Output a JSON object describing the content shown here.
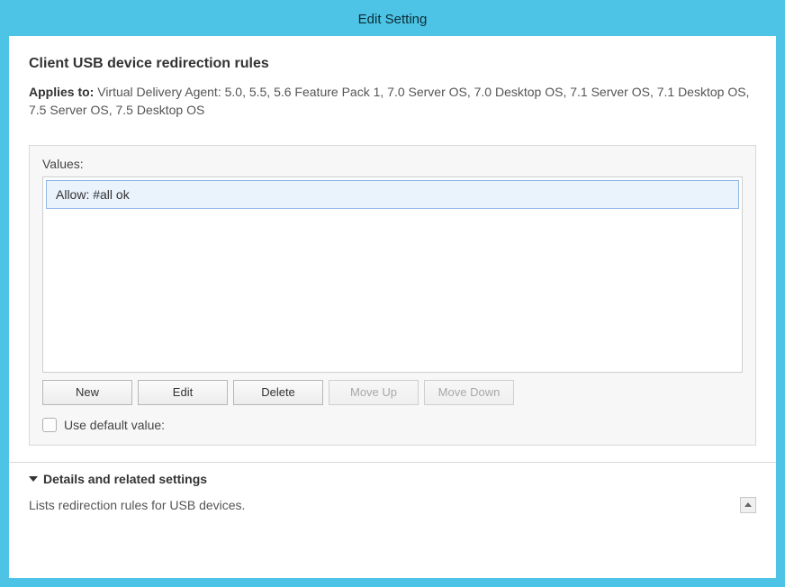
{
  "window": {
    "title": "Edit Setting"
  },
  "header": {
    "heading": "Client USB device redirection rules",
    "applies_label": "Applies to:",
    "applies_text": "Virtual Delivery Agent: 5.0, 5.5, 5.6 Feature Pack 1, 7.0 Server OS, 7.0 Desktop OS, 7.1 Server OS, 7.1 Desktop OS, 7.5 Server OS, 7.5 Desktop OS"
  },
  "values": {
    "caption": "Values:",
    "items": [
      {
        "text": "Allow: #all ok",
        "selected": true
      }
    ],
    "buttons": {
      "new": "New",
      "edit": "Edit",
      "delete": "Delete",
      "move_up": "Move Up",
      "move_down": "Move Down"
    },
    "default_checkbox_label": "Use default value:",
    "default_checked": false
  },
  "details": {
    "header": "Details and related settings",
    "description": "Lists redirection rules for USB devices."
  },
  "colors": {
    "accent": "#4dc4e6",
    "selection_bg": "#eaf2fc",
    "selection_border": "#8fb7e6",
    "panel_border": "#d9d9d9"
  }
}
